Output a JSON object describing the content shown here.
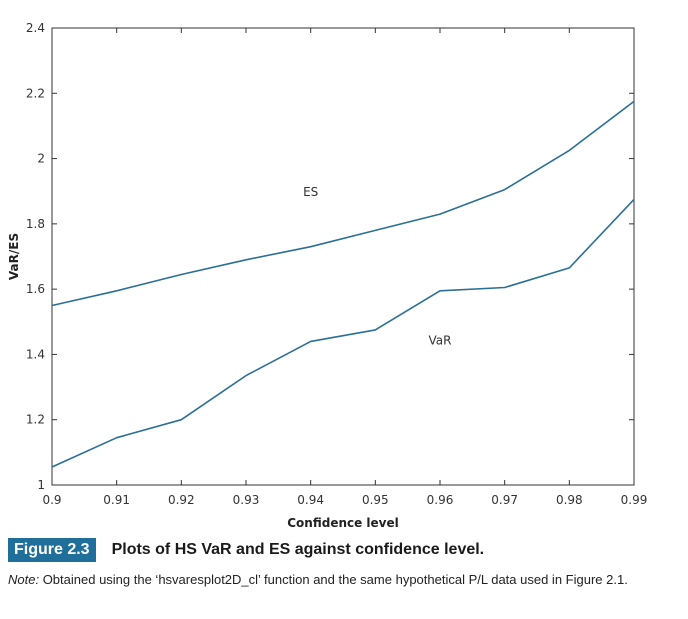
{
  "chart_data": {
    "type": "line",
    "xlabel": "Confidence level",
    "ylabel": "VaR/ES",
    "xlim": [
      0.9,
      0.99
    ],
    "ylim": [
      1,
      2.4
    ],
    "xticks": [
      "0.9",
      "0.91",
      "0.92",
      "0.93",
      "0.94",
      "0.95",
      "0.96",
      "0.97",
      "0.98",
      "0.99"
    ],
    "yticks": [
      "1",
      "1.2",
      "1.4",
      "1.6",
      "1.8",
      "2",
      "2.2",
      "2.4"
    ],
    "x": [
      0.9,
      0.91,
      0.92,
      0.93,
      0.94,
      0.95,
      0.96,
      0.97,
      0.98,
      0.99
    ],
    "series": [
      {
        "name": "ES",
        "values": [
          1.55,
          1.595,
          1.645,
          1.69,
          1.73,
          1.78,
          1.83,
          1.905,
          2.025,
          2.175
        ]
      },
      {
        "name": "VaR",
        "values": [
          1.055,
          1.145,
          1.2,
          1.335,
          1.44,
          1.475,
          1.595,
          1.605,
          1.665,
          1.875
        ]
      }
    ],
    "series_labels": [
      {
        "text": "ES",
        "x": 0.94,
        "y": 1.885
      },
      {
        "text": "VaR",
        "x": 0.96,
        "y": 1.43
      }
    ],
    "line_color": "#2a6f97",
    "grid": false
  },
  "caption": {
    "figure_label": "Figure 2.3",
    "title": "Plots of HS VaR and ES against confidence level."
  },
  "note": {
    "label": "Note:",
    "text": " Obtained using the ‘hsvaresplot2D_cl’ function and the same hypothetical P/L data used in Figure 2.1."
  }
}
